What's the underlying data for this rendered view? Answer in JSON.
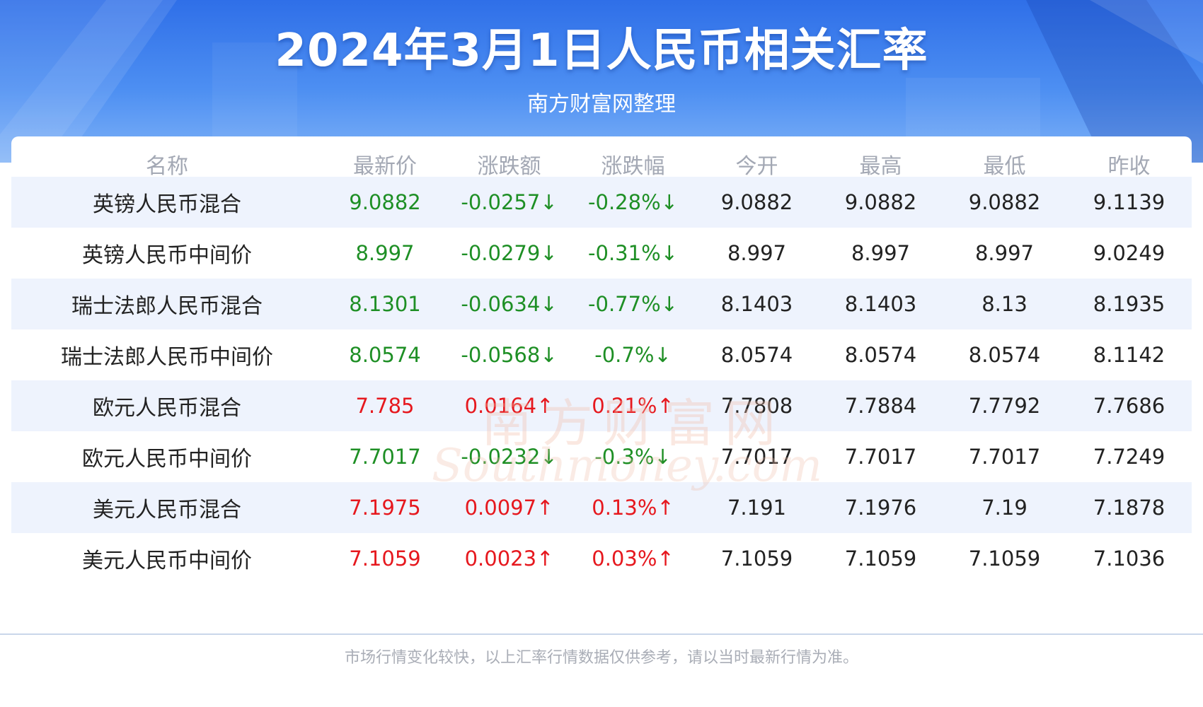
{
  "header": {
    "title": "2024年3月1日人民币相关汇率",
    "subtitle": "南方财富网整理"
  },
  "colors": {
    "header_blue": "#2f6fe8",
    "down_green": "#1e8f25",
    "up_red": "#e6181e",
    "row_alt": "#eef3fd"
  },
  "table": {
    "columns": [
      "名称",
      "最新价",
      "涨跌额",
      "涨跌幅",
      "今开",
      "最高",
      "最低",
      "昨收"
    ],
    "rows": [
      {
        "name": "英镑人民币混合",
        "latest": "9.0882",
        "change": "-0.0257",
        "change_arrow": "↓",
        "pct": "-0.28%",
        "pct_arrow": "↓",
        "open": "9.0882",
        "high": "9.0882",
        "low": "9.0882",
        "prev_close": "9.1139",
        "trend": "down"
      },
      {
        "name": "英镑人民币中间价",
        "latest": "8.997",
        "change": "-0.0279",
        "change_arrow": "↓",
        "pct": "-0.31%",
        "pct_arrow": "↓",
        "open": "8.997",
        "high": "8.997",
        "low": "8.997",
        "prev_close": "9.0249",
        "trend": "down"
      },
      {
        "name": "瑞士法郎人民币混合",
        "latest": "8.1301",
        "change": "-0.0634",
        "change_arrow": "↓",
        "pct": "-0.77%",
        "pct_arrow": "↓",
        "open": "8.1403",
        "high": "8.1403",
        "low": "8.13",
        "prev_close": "8.1935",
        "trend": "down"
      },
      {
        "name": "瑞士法郎人民币中间价",
        "latest": "8.0574",
        "change": "-0.0568",
        "change_arrow": "↓",
        "pct": "-0.7%",
        "pct_arrow": "↓",
        "open": "8.0574",
        "high": "8.0574",
        "low": "8.0574",
        "prev_close": "8.1142",
        "trend": "down"
      },
      {
        "name": "欧元人民币混合",
        "latest": "7.785",
        "change": "0.0164",
        "change_arrow": "↑",
        "pct": "0.21%",
        "pct_arrow": "↑",
        "open": "7.7808",
        "high": "7.7884",
        "low": "7.7792",
        "prev_close": "7.7686",
        "trend": "up"
      },
      {
        "name": "欧元人民币中间价",
        "latest": "7.7017",
        "change": "-0.0232",
        "change_arrow": "↓",
        "pct": "-0.3%",
        "pct_arrow": "↓",
        "open": "7.7017",
        "high": "7.7017",
        "low": "7.7017",
        "prev_close": "7.7249",
        "trend": "down"
      },
      {
        "name": "美元人民币混合",
        "latest": "7.1975",
        "change": "0.0097",
        "change_arrow": "↑",
        "pct": "0.13%",
        "pct_arrow": "↑",
        "open": "7.191",
        "high": "7.1976",
        "low": "7.19",
        "prev_close": "7.1878",
        "trend": "up"
      },
      {
        "name": "美元人民币中间价",
        "latest": "7.1059",
        "change": "0.0023",
        "change_arrow": "↑",
        "pct": "0.03%",
        "pct_arrow": "↑",
        "open": "7.1059",
        "high": "7.1059",
        "low": "7.1059",
        "prev_close": "7.1036",
        "trend": "up"
      }
    ]
  },
  "watermark": {
    "cn": "南方财富网",
    "en": "Southmoney.com"
  },
  "footer": {
    "disclaimer": "市场行情变化较快，以上汇率行情数据仅供参考，请以当时最新行情为准。"
  }
}
